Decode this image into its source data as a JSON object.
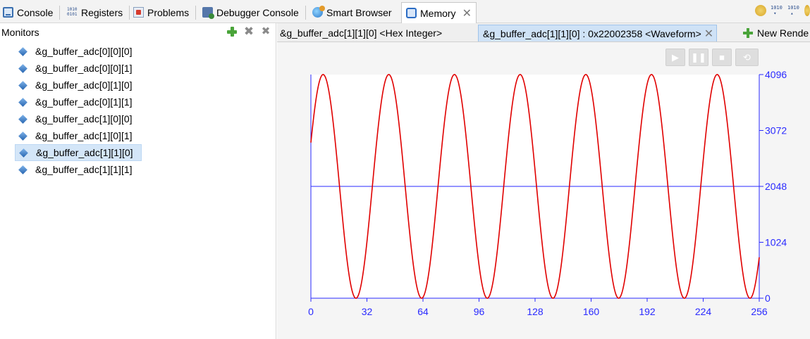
{
  "top_tabs": [
    {
      "label": "Console",
      "icon": "console-icon"
    },
    {
      "label": "Registers",
      "icon": "registers-icon"
    },
    {
      "label": "Problems",
      "icon": "problems-icon"
    },
    {
      "label": "Debugger Console",
      "icon": "debugger-console-icon"
    },
    {
      "label": "Smart Browser",
      "icon": "smart-browser-icon"
    },
    {
      "label": "Memory",
      "icon": "memory-icon",
      "active": true
    }
  ],
  "toolbar_right_icons": [
    "add-monitor-icon",
    "binary-display-icon",
    "binary-toggle-icon",
    "pin-icon"
  ],
  "monitors": {
    "title": "Monitors",
    "items": [
      "&g_buffer_adc[0][0][0]",
      "&g_buffer_adc[0][0][1]",
      "&g_buffer_adc[0][1][0]",
      "&g_buffer_adc[0][1][1]",
      "&g_buffer_adc[1][0][0]",
      "&g_buffer_adc[1][0][1]",
      "&g_buffer_adc[1][1][0]",
      "&g_buffer_adc[1][1][1]"
    ],
    "selected_index": 6
  },
  "renderings": {
    "tabs": [
      "&g_buffer_adc[1][1][0] <Hex Integer>",
      "&g_buffer_adc[1][1][0] : 0x22002358 <Waveform>",
      "New Rende"
    ],
    "active_index": 1,
    "controls": [
      "play-icon",
      "pause-icon",
      "stop-icon",
      "loop-icon"
    ]
  },
  "colors": {
    "waveform": "#e00000",
    "axis": "#2a2aff",
    "selected": "#d4e6f8",
    "active_tab": "#cfe2f6"
  },
  "chart_data": {
    "type": "line",
    "x_ticks": [
      0,
      32,
      64,
      96,
      128,
      160,
      192,
      224,
      256
    ],
    "y_ticks": [
      0,
      1024,
      2048,
      3072,
      4096
    ],
    "xlim": [
      0,
      256
    ],
    "ylim": [
      0,
      4096
    ],
    "midline": 2048,
    "series": [
      {
        "amplitude": 2048,
        "offset": 2048,
        "period": 37.5,
        "start_value": 2850,
        "samples": 256
      }
    ]
  }
}
